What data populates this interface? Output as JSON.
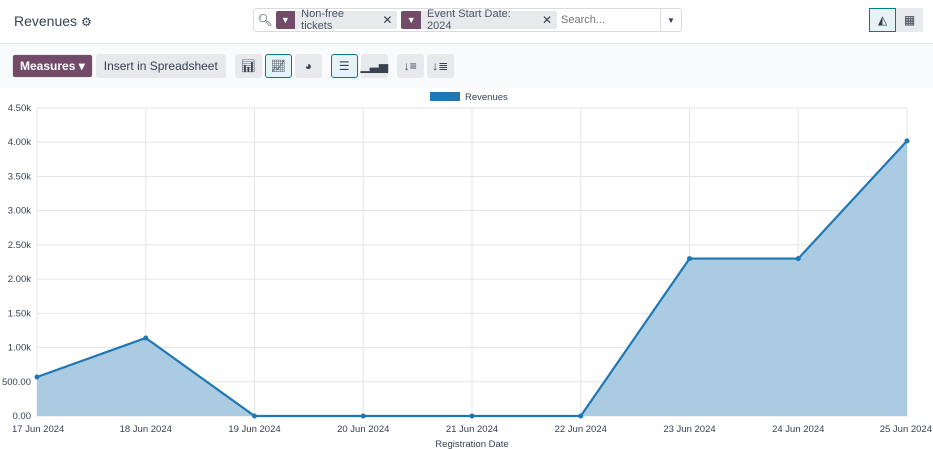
{
  "header": {
    "title": "Revenues",
    "settings_icon": "gear-icon",
    "search": {
      "facets": [
        {
          "icon": "filter-icon",
          "label": "Non-free tickets"
        },
        {
          "icon": "filter-icon",
          "label": "Event Start Date: 2024"
        }
      ],
      "placeholder": "Search..."
    },
    "views": [
      {
        "icon": "area-chart-icon",
        "active": true
      },
      {
        "icon": "pivot-table-icon",
        "active": false
      }
    ]
  },
  "toolbar": {
    "measures_label": "Measures",
    "insert_label": "Insert in Spreadsheet",
    "chart_types": [
      {
        "icon": "bar-chart-icon",
        "active": false
      },
      {
        "icon": "line-chart-icon",
        "active": true
      },
      {
        "icon": "pie-chart-icon",
        "active": false
      }
    ],
    "options": [
      {
        "icon": "stacked-icon",
        "active": true
      },
      {
        "icon": "cumulative-icon",
        "active": false
      }
    ],
    "sort": [
      {
        "icon": "sort-descending-icon"
      },
      {
        "icon": "sort-ascending-icon"
      }
    ]
  },
  "chart_data": {
    "type": "area",
    "categories": [
      "17 Jun 2024",
      "18 Jun 2024",
      "19 Jun 2024",
      "20 Jun 2024",
      "21 Jun 2024",
      "22 Jun 2024",
      "23 Jun 2024",
      "24 Jun 2024",
      "25 Jun 2024"
    ],
    "series": [
      {
        "name": "Revenues",
        "values": [
          570,
          1140,
          0,
          0,
          0,
          0,
          2300,
          2300,
          4020
        ],
        "color": "#1f77b4",
        "fill": "#a6c8e0"
      }
    ],
    "xlabel": "Registration Date",
    "ylabel": "",
    "ylim": [
      0,
      4500
    ],
    "yticks": [
      "0.00",
      "500.00",
      "1.00k",
      "1.50k",
      "2.00k",
      "2.50k",
      "3.00k",
      "3.50k",
      "4.00k",
      "4.50k"
    ],
    "grid": true,
    "legend": "top"
  }
}
